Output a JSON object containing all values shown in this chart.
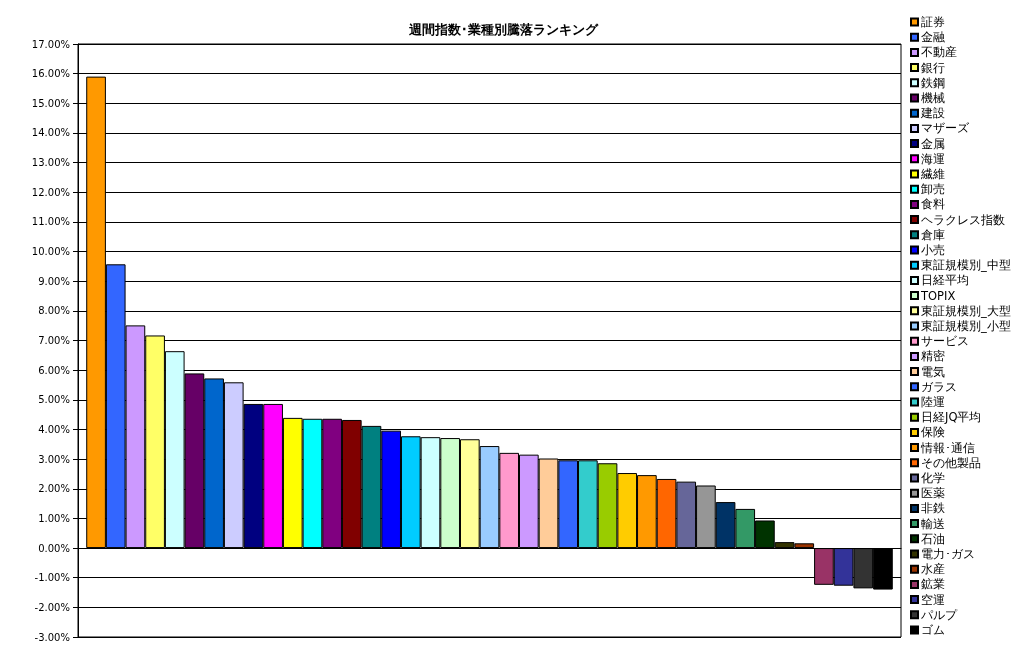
{
  "chart_data": {
    "type": "bar",
    "title": "週間指数･業種別騰落ランキング",
    "categories": [
      null
    ],
    "series": [
      {
        "name": "証券",
        "color": "#ff9900",
        "values": [
          15.9
        ]
      },
      {
        "name": "金融",
        "color": "#3366ff",
        "values": [
          9.57
        ]
      },
      {
        "name": "不動産",
        "color": "#cc99ff",
        "values": [
          7.51
        ]
      },
      {
        "name": "銀行",
        "color": "#ffff66",
        "values": [
          7.17
        ]
      },
      {
        "name": "鉄鋼",
        "color": "#ccffff",
        "values": [
          6.64
        ]
      },
      {
        "name": "機械",
        "color": "#660066",
        "values": [
          5.89
        ]
      },
      {
        "name": "建設",
        "color": "#0066cc",
        "values": [
          5.72
        ]
      },
      {
        "name": "マザーズ",
        "color": "#ccccff",
        "values": [
          5.59
        ]
      },
      {
        "name": "金属",
        "color": "#000080",
        "values": [
          4.86
        ]
      },
      {
        "name": "海運",
        "color": "#ff00ff",
        "values": [
          4.86
        ]
      },
      {
        "name": "繊維",
        "color": "#ffff00",
        "values": [
          4.39
        ]
      },
      {
        "name": "卸売",
        "color": "#00ffff",
        "values": [
          4.36
        ]
      },
      {
        "name": "食料",
        "color": "#800080",
        "values": [
          4.36
        ]
      },
      {
        "name": "ヘラクレス指数",
        "color": "#800000",
        "values": [
          4.32
        ]
      },
      {
        "name": "倉庫",
        "color": "#008080",
        "values": [
          4.12
        ]
      },
      {
        "name": "小売",
        "color": "#0000ff",
        "values": [
          3.96
        ]
      },
      {
        "name": "東証規模別_中型",
        "color": "#00ccff",
        "values": [
          3.77
        ]
      },
      {
        "name": "日経平均",
        "color": "#ccffff",
        "values": [
          3.74
        ]
      },
      {
        "name": "TOPIX",
        "color": "#ccffcc",
        "values": [
          3.71
        ]
      },
      {
        "name": "東証規模別_大型",
        "color": "#ffff99",
        "values": [
          3.67
        ]
      },
      {
        "name": "東証規模別_小型",
        "color": "#99ccff",
        "values": [
          3.44
        ]
      },
      {
        "name": "サービス",
        "color": "#ff99cc",
        "values": [
          3.21
        ]
      },
      {
        "name": "精密",
        "color": "#cc99ff",
        "values": [
          3.15
        ]
      },
      {
        "name": "電気",
        "color": "#ffcc99",
        "values": [
          3.02
        ]
      },
      {
        "name": "ガラス",
        "color": "#3366ff",
        "values": [
          2.96
        ]
      },
      {
        "name": "陸運",
        "color": "#33cccc",
        "values": [
          2.96
        ]
      },
      {
        "name": "日経JQ平均",
        "color": "#99cc00",
        "values": [
          2.86
        ]
      },
      {
        "name": "保険",
        "color": "#ffcc00",
        "values": [
          2.53
        ]
      },
      {
        "name": "情報･通信",
        "color": "#ff9900",
        "values": [
          2.46
        ]
      },
      {
        "name": "その他製品",
        "color": "#ff6600",
        "values": [
          2.33
        ]
      },
      {
        "name": "化学",
        "color": "#666699",
        "values": [
          2.24
        ]
      },
      {
        "name": "医薬",
        "color": "#969696",
        "values": [
          2.11
        ]
      },
      {
        "name": "非鉄",
        "color": "#003366",
        "values": [
          1.55
        ]
      },
      {
        "name": "輸送",
        "color": "#339966",
        "values": [
          1.32
        ]
      },
      {
        "name": "石油",
        "color": "#003300",
        "values": [
          0.93
        ]
      },
      {
        "name": "電力･ガス",
        "color": "#333300",
        "values": [
          0.2
        ]
      },
      {
        "name": "水産",
        "color": "#993300",
        "values": [
          0.16
        ]
      },
      {
        "name": "鉱業",
        "color": "#993366",
        "values": [
          -1.24
        ]
      },
      {
        "name": "空運",
        "color": "#333399",
        "values": [
          -1.27
        ]
      },
      {
        "name": "パルプ",
        "color": "#333333",
        "values": [
          -1.36
        ]
      },
      {
        "name": "ゴム",
        "color": "#000000",
        "values": [
          -1.4
        ]
      }
    ],
    "ylim": [
      -3,
      17
    ],
    "yticks": [
      {
        "value": -3,
        "label": "-3.00%"
      },
      {
        "value": -2,
        "label": "-2.00%"
      },
      {
        "value": -1,
        "label": "-1.00%"
      },
      {
        "value": 0,
        "label": "0.00%"
      },
      {
        "value": 1,
        "label": "1.00%"
      },
      {
        "value": 2,
        "label": "2.00%"
      },
      {
        "value": 3,
        "label": "3.00%"
      },
      {
        "value": 4,
        "label": "4.00%"
      },
      {
        "value": 5,
        "label": "5.00%"
      },
      {
        "value": 6,
        "label": "6.00%"
      },
      {
        "value": 7,
        "label": "7.00%"
      },
      {
        "value": 8,
        "label": "8.00%"
      },
      {
        "value": 9,
        "label": "9.00%"
      },
      {
        "value": 10,
        "label": "10.00%"
      },
      {
        "value": 11,
        "label": "11.00%"
      },
      {
        "value": 12,
        "label": "12.00%"
      },
      {
        "value": 13,
        "label": "13.00%"
      },
      {
        "value": 14,
        "label": "14.00%"
      },
      {
        "value": 15,
        "label": "15.00%"
      },
      {
        "value": 16,
        "label": "16.00%"
      },
      {
        "value": 17,
        "label": "17.00%"
      }
    ],
    "grid": "y",
    "legend": "right"
  }
}
